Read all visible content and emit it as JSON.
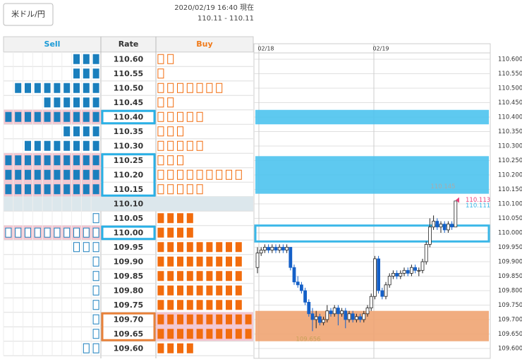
{
  "header": {
    "pair_button": "米ドル/円",
    "timestamp": "2020/02/19 16:40 現在",
    "rate": "110.11 - 110.11"
  },
  "table": {
    "headers": {
      "sell": "Sell",
      "rate": "Rate",
      "buy": "Buy"
    },
    "max_boxes": 10,
    "sell_color": "#1a7fbd",
    "buy_color": "#f26c0d",
    "rows": [
      {
        "rate": "110.60",
        "sell": 3,
        "buy": 2
      },
      {
        "rate": "110.55",
        "sell": 3,
        "buy": 1
      },
      {
        "rate": "110.50",
        "sell": 9,
        "buy": 7
      },
      {
        "rate": "110.45",
        "sell": 6,
        "buy": 2
      },
      {
        "rate": "110.40",
        "sell": 10,
        "buy": 5
      },
      {
        "rate": "110.35",
        "sell": 4,
        "buy": 3
      },
      {
        "rate": "110.30",
        "sell": 8,
        "buy": 5
      },
      {
        "rate": "110.25",
        "sell": 10,
        "buy": 3
      },
      {
        "rate": "110.20",
        "sell": 10,
        "buy": 9
      },
      {
        "rate": "110.15",
        "sell": 10,
        "buy": 5
      },
      {
        "rate": "110.10",
        "sell": 0,
        "buy": 0
      },
      {
        "rate": "110.05",
        "sell": 1,
        "buy": 4
      },
      {
        "rate": "110.00",
        "sell": 10,
        "buy": 4
      },
      {
        "rate": "109.95",
        "sell": 3,
        "buy": 9
      },
      {
        "rate": "109.90",
        "sell": 1,
        "buy": 9
      },
      {
        "rate": "109.85",
        "sell": 1,
        "buy": 9
      },
      {
        "rate": "109.80",
        "sell": 1,
        "buy": 9
      },
      {
        "rate": "109.75",
        "sell": 1,
        "buy": 9
      },
      {
        "rate": "109.70",
        "sell": 1,
        "buy": 10
      },
      {
        "rate": "109.65",
        "sell": 1,
        "buy": 10
      },
      {
        "rate": "109.60",
        "sell": 2,
        "buy": 4
      }
    ],
    "current_row": 10,
    "rate_marks": [
      {
        "rows": [
          4
        ],
        "color": "#2ab0e6"
      },
      {
        "rows": [
          7,
          8,
          9
        ],
        "color": "#2ab0e6"
      },
      {
        "rows": [
          12
        ],
        "color": "#2ab0e6"
      },
      {
        "rows": [
          18,
          19
        ],
        "color": "#e8813a"
      }
    ]
  },
  "chart": {
    "type": "candlestick",
    "dates": [
      "02/18",
      "02/19"
    ],
    "ylim": [
      109.6,
      110.6
    ],
    "yticks": [
      {
        "value": 110.6,
        "label": "110.600"
      },
      {
        "value": 110.55,
        "label": "110.550"
      },
      {
        "value": 110.5,
        "label": "110.500"
      },
      {
        "value": 110.45,
        "label": "110.450"
      },
      {
        "value": 110.4,
        "label": "110.400"
      },
      {
        "value": 110.35,
        "label": "110.350"
      },
      {
        "value": 110.3,
        "label": "110.300"
      },
      {
        "value": 110.25,
        "label": "110.250"
      },
      {
        "value": 110.2,
        "label": "110.200"
      },
      {
        "value": 110.15,
        "label": "110.150"
      },
      {
        "value": 110.1,
        "label": "110.100"
      },
      {
        "value": 110.05,
        "label": "110.050"
      },
      {
        "value": 110,
        "label": "110.000"
      },
      {
        "value": 109.95,
        "label": "109.950"
      },
      {
        "value": 109.9,
        "label": "109.900"
      },
      {
        "value": 109.85,
        "label": "109.850"
      },
      {
        "value": 109.8,
        "label": "109.800"
      },
      {
        "value": 109.75,
        "label": "109.750"
      },
      {
        "value": 109.7,
        "label": "109.700"
      },
      {
        "value": 109.65,
        "label": "109.650"
      },
      {
        "value": 109.6,
        "label": "109.600"
      }
    ],
    "up_color": "#ffffff",
    "down_color": "#1560c8",
    "bands": [
      {
        "from": 110.425,
        "to": 110.375,
        "style": "fill",
        "color": "#4cc3ee"
      },
      {
        "from": 110.265,
        "to": 110.135,
        "style": "fill",
        "color": "#4cc3ee"
      },
      {
        "from": 110.025,
        "to": 109.97,
        "style": "outline",
        "color": "#3ab7e8"
      },
      {
        "from": 109.73,
        "to": 109.625,
        "style": "fill",
        "color": "#f0a472"
      }
    ],
    "annotations": [
      {
        "value": 110.145,
        "color": "#aaaaaa"
      },
      {
        "value": 110.113,
        "color": "#e8407a"
      },
      {
        "value": 110.111,
        "color": "#3ab7e8"
      },
      {
        "value": 109.656,
        "color": "#c9a25a"
      }
    ],
    "ohlc": [
      [
        109.88,
        109.95,
        109.86,
        109.93
      ],
      [
        109.93,
        109.95,
        109.92,
        109.94
      ],
      [
        109.94,
        109.96,
        109.93,
        109.95
      ],
      [
        109.95,
        109.96,
        109.93,
        109.94
      ],
      [
        109.94,
        109.96,
        109.93,
        109.95
      ],
      [
        109.95,
        109.96,
        109.93,
        109.94
      ],
      [
        109.94,
        109.96,
        109.93,
        109.95
      ],
      [
        109.95,
        109.96,
        109.93,
        109.94
      ],
      [
        109.94,
        109.96,
        109.93,
        109.95
      ],
      [
        109.95,
        109.95,
        109.87,
        109.88
      ],
      [
        109.88,
        109.89,
        109.82,
        109.83
      ],
      [
        109.83,
        109.85,
        109.81,
        109.82
      ],
      [
        109.82,
        109.83,
        109.79,
        109.8
      ],
      [
        109.8,
        109.81,
        109.75,
        109.76
      ],
      [
        109.76,
        109.77,
        109.71,
        109.72
      ],
      [
        109.72,
        109.74,
        109.66,
        109.7
      ],
      [
        109.7,
        109.73,
        109.67,
        109.71
      ],
      [
        109.71,
        109.72,
        109.68,
        109.69
      ],
      [
        109.69,
        109.71,
        109.68,
        109.7
      ],
      [
        109.7,
        109.75,
        109.69,
        109.73
      ],
      [
        109.73,
        109.74,
        109.71,
        109.72
      ],
      [
        109.72,
        109.75,
        109.71,
        109.74
      ],
      [
        109.74,
        109.75,
        109.68,
        109.72
      ],
      [
        109.72,
        109.74,
        109.71,
        109.73
      ],
      [
        109.73,
        109.74,
        109.67,
        109.7
      ],
      [
        109.7,
        109.73,
        109.69,
        109.72
      ],
      [
        109.72,
        109.73,
        109.69,
        109.7
      ],
      [
        109.7,
        109.72,
        109.69,
        109.71
      ],
      [
        109.71,
        109.72,
        109.69,
        109.7
      ],
      [
        109.7,
        109.73,
        109.69,
        109.72
      ],
      [
        109.72,
        109.75,
        109.71,
        109.74
      ],
      [
        109.74,
        109.79,
        109.73,
        109.78
      ],
      [
        109.78,
        109.92,
        109.77,
        109.91
      ],
      [
        109.91,
        109.92,
        109.79,
        109.8
      ],
      [
        109.8,
        109.81,
        109.77,
        109.78
      ],
      [
        109.78,
        109.83,
        109.77,
        109.82
      ],
      [
        109.82,
        109.86,
        109.81,
        109.85
      ],
      [
        109.85,
        109.87,
        109.84,
        109.86
      ],
      [
        109.86,
        109.87,
        109.84,
        109.85
      ],
      [
        109.85,
        109.87,
        109.84,
        109.86
      ],
      [
        109.86,
        109.88,
        109.85,
        109.87
      ],
      [
        109.87,
        109.88,
        109.85,
        109.86
      ],
      [
        109.86,
        109.89,
        109.85,
        109.88
      ],
      [
        109.88,
        109.89,
        109.86,
        109.87
      ],
      [
        109.87,
        109.88,
        109.85,
        109.87
      ],
      [
        109.87,
        109.91,
        109.86,
        109.9
      ],
      [
        109.9,
        109.97,
        109.89,
        109.96
      ],
      [
        109.96,
        110.05,
        109.95,
        110.02
      ],
      [
        110.02,
        110.06,
        110.01,
        110.04
      ],
      [
        110.04,
        110.05,
        110.01,
        110.02
      ],
      [
        110.02,
        110.04,
        110,
        110.03
      ],
      [
        110.03,
        110.04,
        110,
        110.01
      ],
      [
        110.01,
        110.04,
        110,
        110.03
      ],
      [
        110.03,
        110.04,
        110.01,
        110.02
      ],
      [
        110.02,
        110.11,
        110.02,
        110.11
      ]
    ]
  }
}
